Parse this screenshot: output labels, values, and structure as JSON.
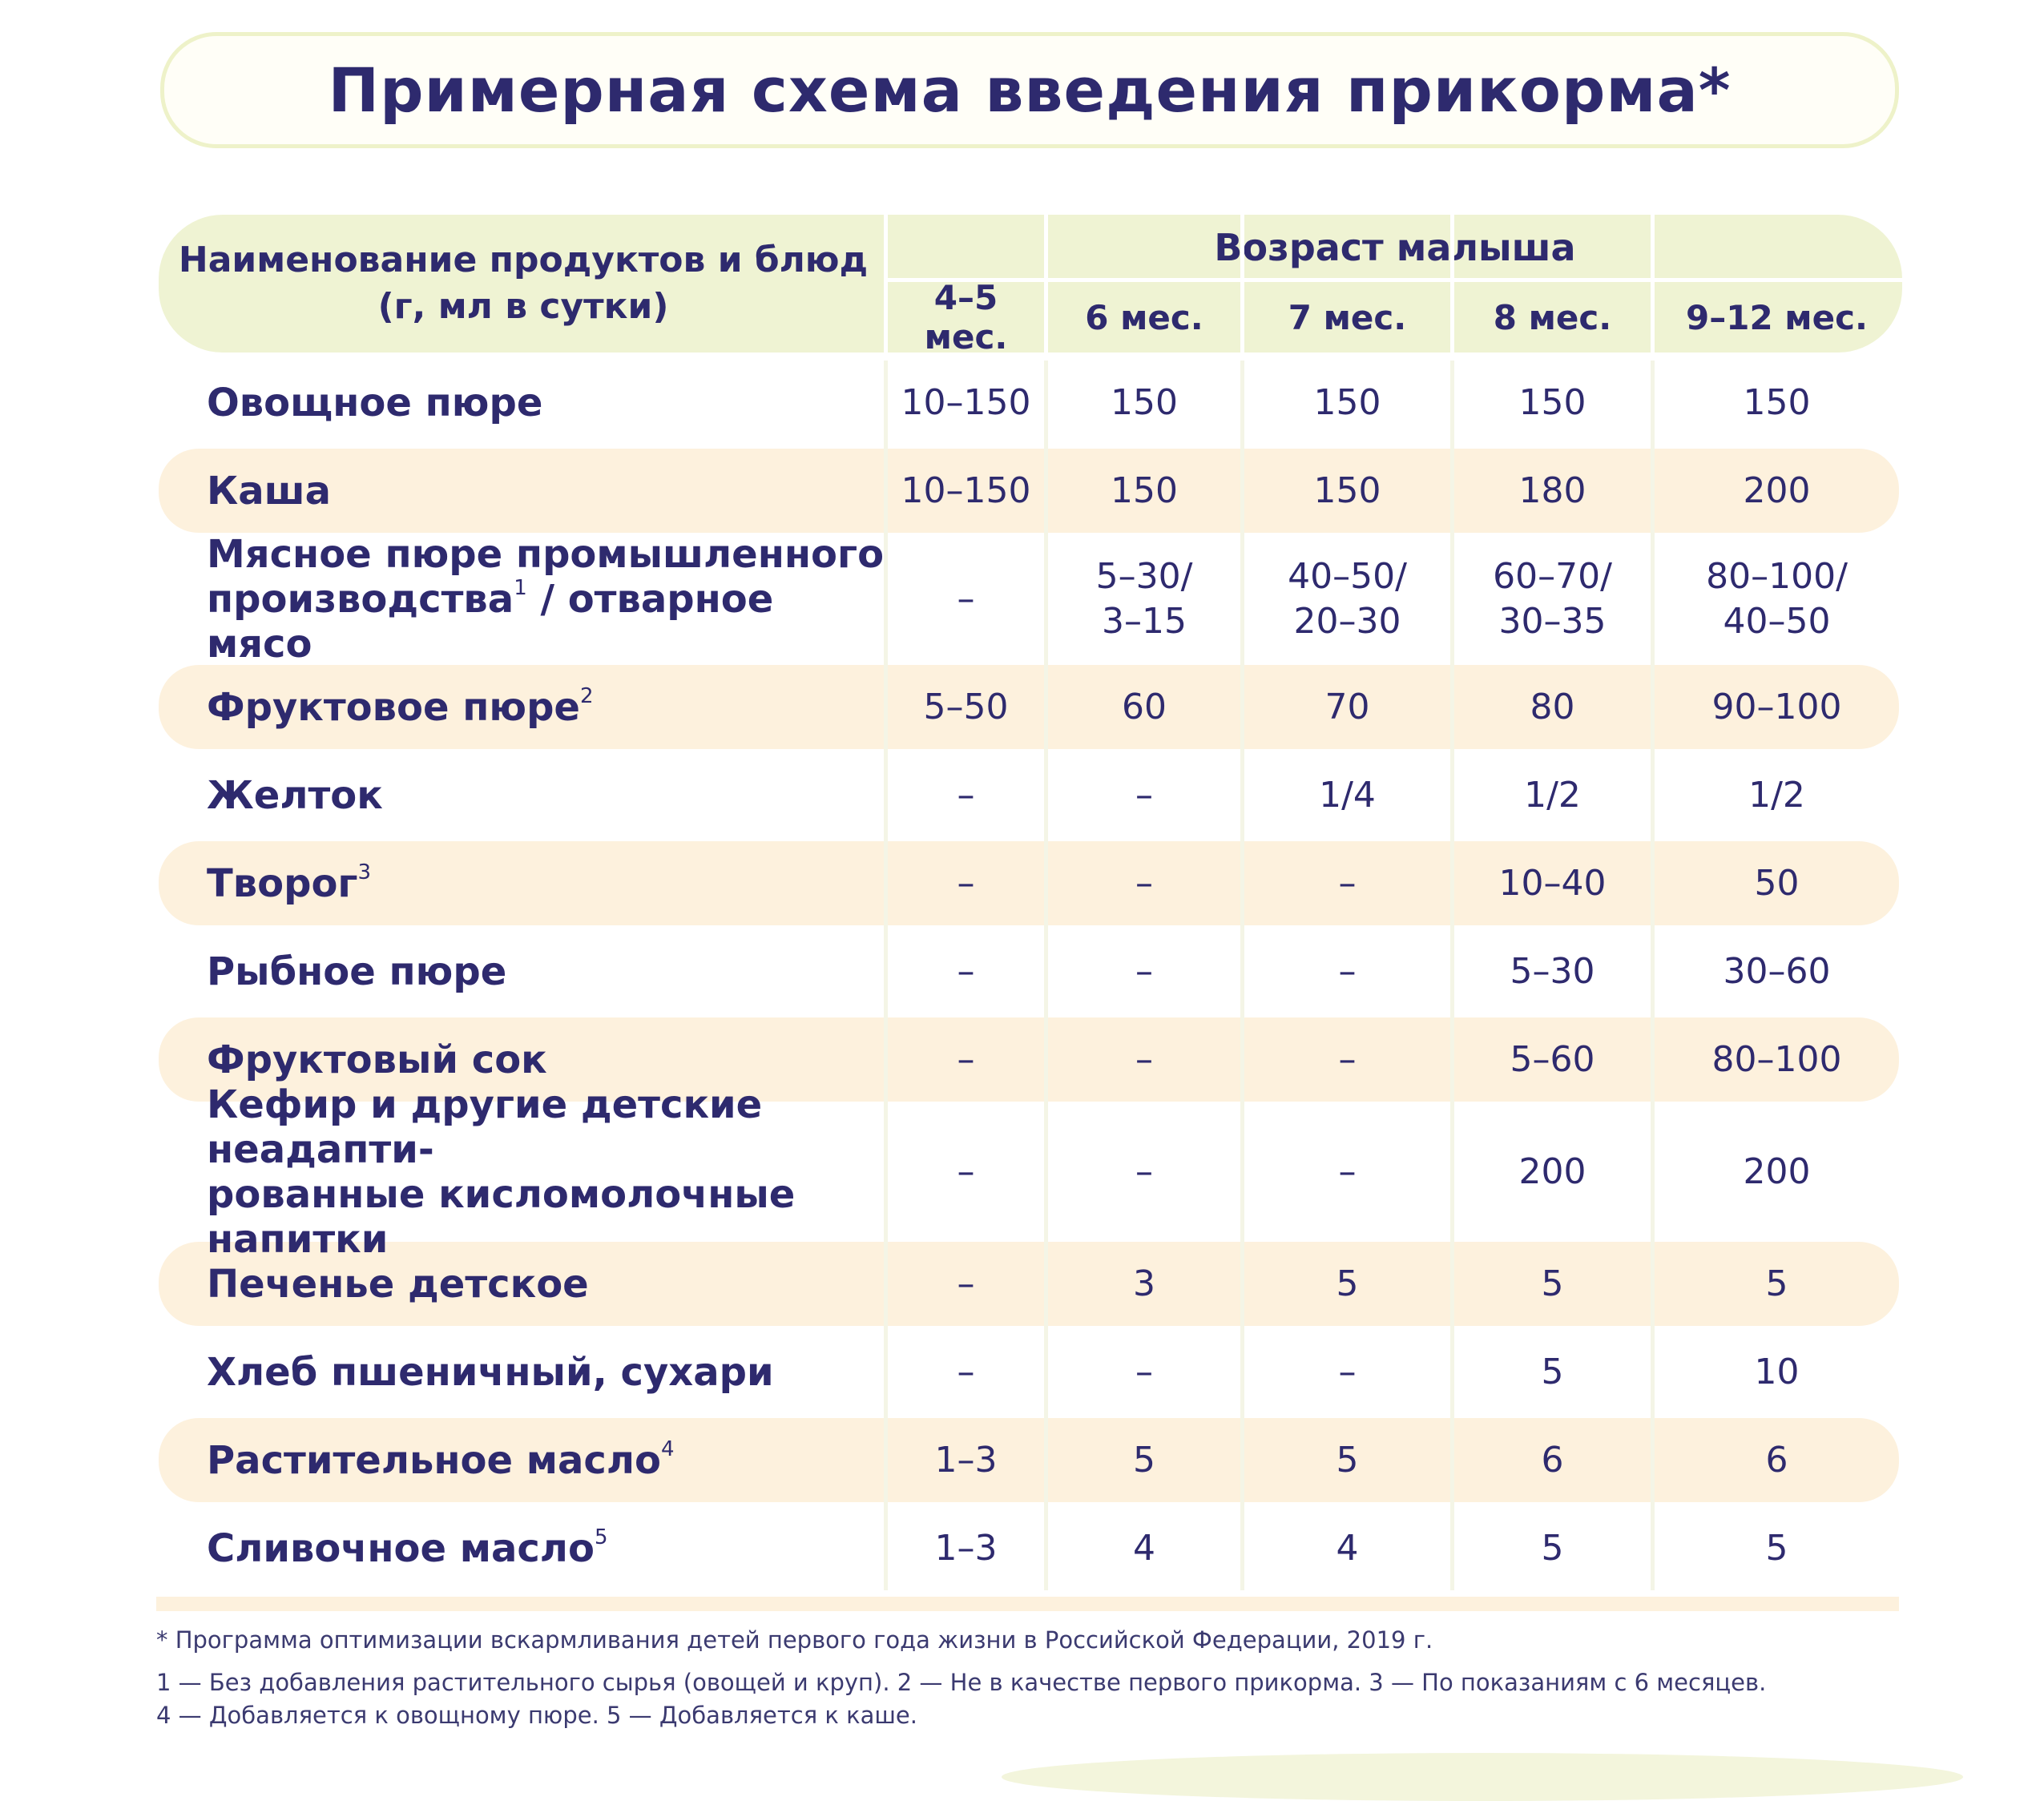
{
  "title": "Примерная схема введения прикорма*",
  "header": {
    "name_line1": "Наименование продуктов и блюд",
    "name_line2": "(г, мл в сутки)",
    "age_group": "Возраст малыша",
    "ages": [
      "4–5 мес.",
      "6 мес.",
      "7 мес.",
      "8 мес.",
      "9–12 мес."
    ]
  },
  "rows": [
    {
      "name": "Овощное пюре",
      "sup": "",
      "values": [
        [
          "10–150"
        ],
        [
          "150"
        ],
        [
          "150"
        ],
        [
          "150"
        ],
        [
          "150"
        ]
      ]
    },
    {
      "name": "Каша",
      "sup": "",
      "values": [
        [
          "10–150"
        ],
        [
          "150"
        ],
        [
          "150"
        ],
        [
          "180"
        ],
        [
          "200"
        ]
      ]
    },
    {
      "name": "Мясное пюре промышленного",
      "name2a": "производства",
      "sup": "1",
      "name2b": " / отварное мясо",
      "values": [
        [
          "–"
        ],
        [
          "5–30/",
          "3–15"
        ],
        [
          "40–50/",
          "20–30"
        ],
        [
          "60–70/",
          "30–35"
        ],
        [
          "80–100/",
          "40–50"
        ]
      ]
    },
    {
      "name": "Фруктовое пюре",
      "sup": "2",
      "values": [
        [
          "5–50"
        ],
        [
          "60"
        ],
        [
          "70"
        ],
        [
          "80"
        ],
        [
          "90–100"
        ]
      ]
    },
    {
      "name": "Желток",
      "sup": "",
      "values": [
        [
          "–"
        ],
        [
          "–"
        ],
        [
          "1/4"
        ],
        [
          "1/2"
        ],
        [
          "1/2"
        ]
      ]
    },
    {
      "name": "Творог",
      "sup": "3",
      "values": [
        [
          "–"
        ],
        [
          "–"
        ],
        [
          "–"
        ],
        [
          "10–40"
        ],
        [
          "50"
        ]
      ]
    },
    {
      "name": "Рыбное пюре",
      "sup": "",
      "values": [
        [
          "–"
        ],
        [
          "–"
        ],
        [
          "–"
        ],
        [
          "5–30"
        ],
        [
          "30–60"
        ]
      ]
    },
    {
      "name": "Фруктовый сок",
      "sup": "",
      "values": [
        [
          "–"
        ],
        [
          "–"
        ],
        [
          "–"
        ],
        [
          "5–60"
        ],
        [
          "80–100"
        ]
      ]
    },
    {
      "name": "Кефир и другие детские неадапти-",
      "name2a": "рованные кисломолочные напитки",
      "sup": "",
      "name2b": "",
      "values": [
        [
          "–"
        ],
        [
          "–"
        ],
        [
          "–"
        ],
        [
          "200"
        ],
        [
          "200"
        ]
      ]
    },
    {
      "name": "Печенье детское",
      "sup": "",
      "values": [
        [
          "–"
        ],
        [
          "3"
        ],
        [
          "5"
        ],
        [
          "5"
        ],
        [
          "5"
        ]
      ]
    },
    {
      "name": "Хлеб пшеничный, сухари",
      "sup": "",
      "values": [
        [
          "–"
        ],
        [
          "–"
        ],
        [
          "–"
        ],
        [
          "5"
        ],
        [
          "10"
        ]
      ]
    },
    {
      "name": "Растительное масло",
      "sup": "4",
      "values": [
        [
          "1–3"
        ],
        [
          "5"
        ],
        [
          "5"
        ],
        [
          "6"
        ],
        [
          "6"
        ]
      ]
    },
    {
      "name": "Сливочное масло",
      "sup": "5",
      "values": [
        [
          "1–3"
        ],
        [
          "4"
        ],
        [
          "4"
        ],
        [
          "5"
        ],
        [
          "5"
        ]
      ]
    }
  ],
  "footnotes": {
    "source": "* Программа оптимизации вскармливания детей первого года жизни в Российской Федерации, 2019 г.",
    "notes_line1": "1 — Без добавления растительного сырья (овощей и круп).  2 — Не в качестве первого прикорма.  3 — По показаниям с 6 месяцев.",
    "notes_line2": "4 — Добавляется к овощному пюре.  5 — Добавляется к каше."
  }
}
